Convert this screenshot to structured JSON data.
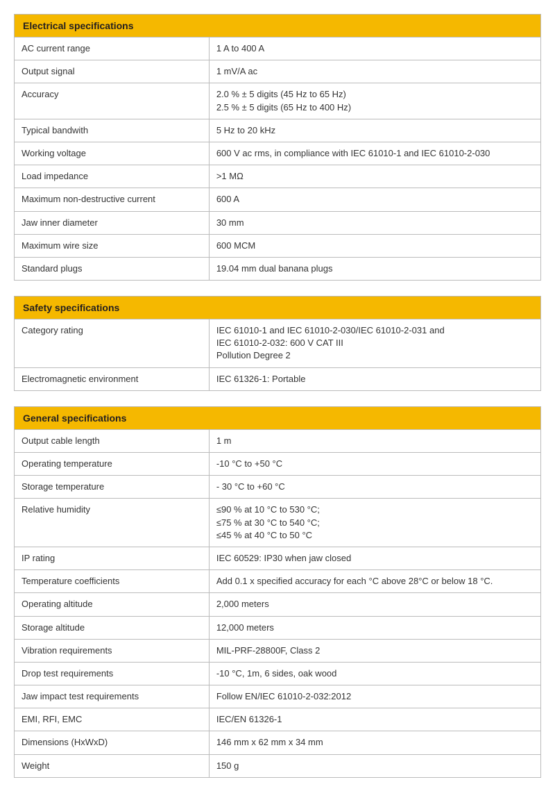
{
  "tables": [
    {
      "title": "Electrical specifications",
      "header_bg": "#f5b800",
      "rows": [
        {
          "label": "AC current range",
          "value": "1 A to 400 A"
        },
        {
          "label": "Output signal",
          "value": "1 mV/A ac"
        },
        {
          "label": "Accuracy",
          "value": "2.0 % ± 5 digits (45 Hz to 65 Hz)\n2.5 % ± 5 digits (65 Hz to 400 Hz)"
        },
        {
          "label": "Typical bandwith",
          "value": "5 Hz to 20 kHz"
        },
        {
          "label": "Working voltage",
          "value": "600 V ac rms, in compliance with IEC 61010-1 and IEC 61010-2-030"
        },
        {
          "label": "Load impedance",
          "value": ">1 MΩ"
        },
        {
          "label": "Maximum non-destructive current",
          "value": "600 A"
        },
        {
          "label": "Jaw inner diameter",
          "value": "30 mm"
        },
        {
          "label": "Maximum wire size",
          "value": "600 MCM"
        },
        {
          "label": "Standard plugs",
          "value": "19.04 mm dual banana plugs"
        }
      ]
    },
    {
      "title": "Safety specifications",
      "header_bg": "#f5b800",
      "rows": [
        {
          "label": "Category rating",
          "value": "IEC 61010-1 and IEC 61010-2-030/IEC 61010-2-031 and\nIEC 61010-2-032: 600 V CAT III\nPollution Degree 2"
        },
        {
          "label": "Electromagnetic environment",
          "value": "IEC 61326-1: Portable"
        }
      ]
    },
    {
      "title": "General specifications",
      "header_bg": "#f5b800",
      "rows": [
        {
          "label": "Output cable length",
          "value": "1 m"
        },
        {
          "label": "Operating temperature",
          "value": "-10 °C to +50 °C"
        },
        {
          "label": "Storage temperature",
          "value": "- 30 °C to +60 °C"
        },
        {
          "label": "Relative humidity",
          "value": "≤90 % at 10 °C to 530 °C;\n≤75 % at 30 °C to 540 °C;\n≤45 % at 40 °C to 50 °C"
        },
        {
          "label": "IP rating",
          "value": "IEC 60529: IP30 when jaw closed"
        },
        {
          "label": "Temperature coefficients",
          "value": "Add 0.1 x specified accuracy for each °C above 28°C or below 18 °C."
        },
        {
          "label": "Operating altitude",
          "value": "2,000 meters"
        },
        {
          "label": "Storage altitude",
          "value": "12,000 meters"
        },
        {
          "label": "Vibration requirements",
          "value": "MIL-PRF-28800F, Class 2"
        },
        {
          "label": "Drop test requirements",
          "value": "-10 °C, 1m, 6 sides, oak wood"
        },
        {
          "label": "Jaw impact test requirements",
          "value": "Follow EN/IEC 61010-2-032:2012"
        },
        {
          "label": "EMI, RFI, EMC",
          "value": "IEC/EN 61326-1"
        },
        {
          "label": "Dimensions (HxWxD)",
          "value": "146 mm x 62 mm x 34 mm"
        },
        {
          "label": "Weight",
          "value": "150 g"
        }
      ]
    }
  ]
}
